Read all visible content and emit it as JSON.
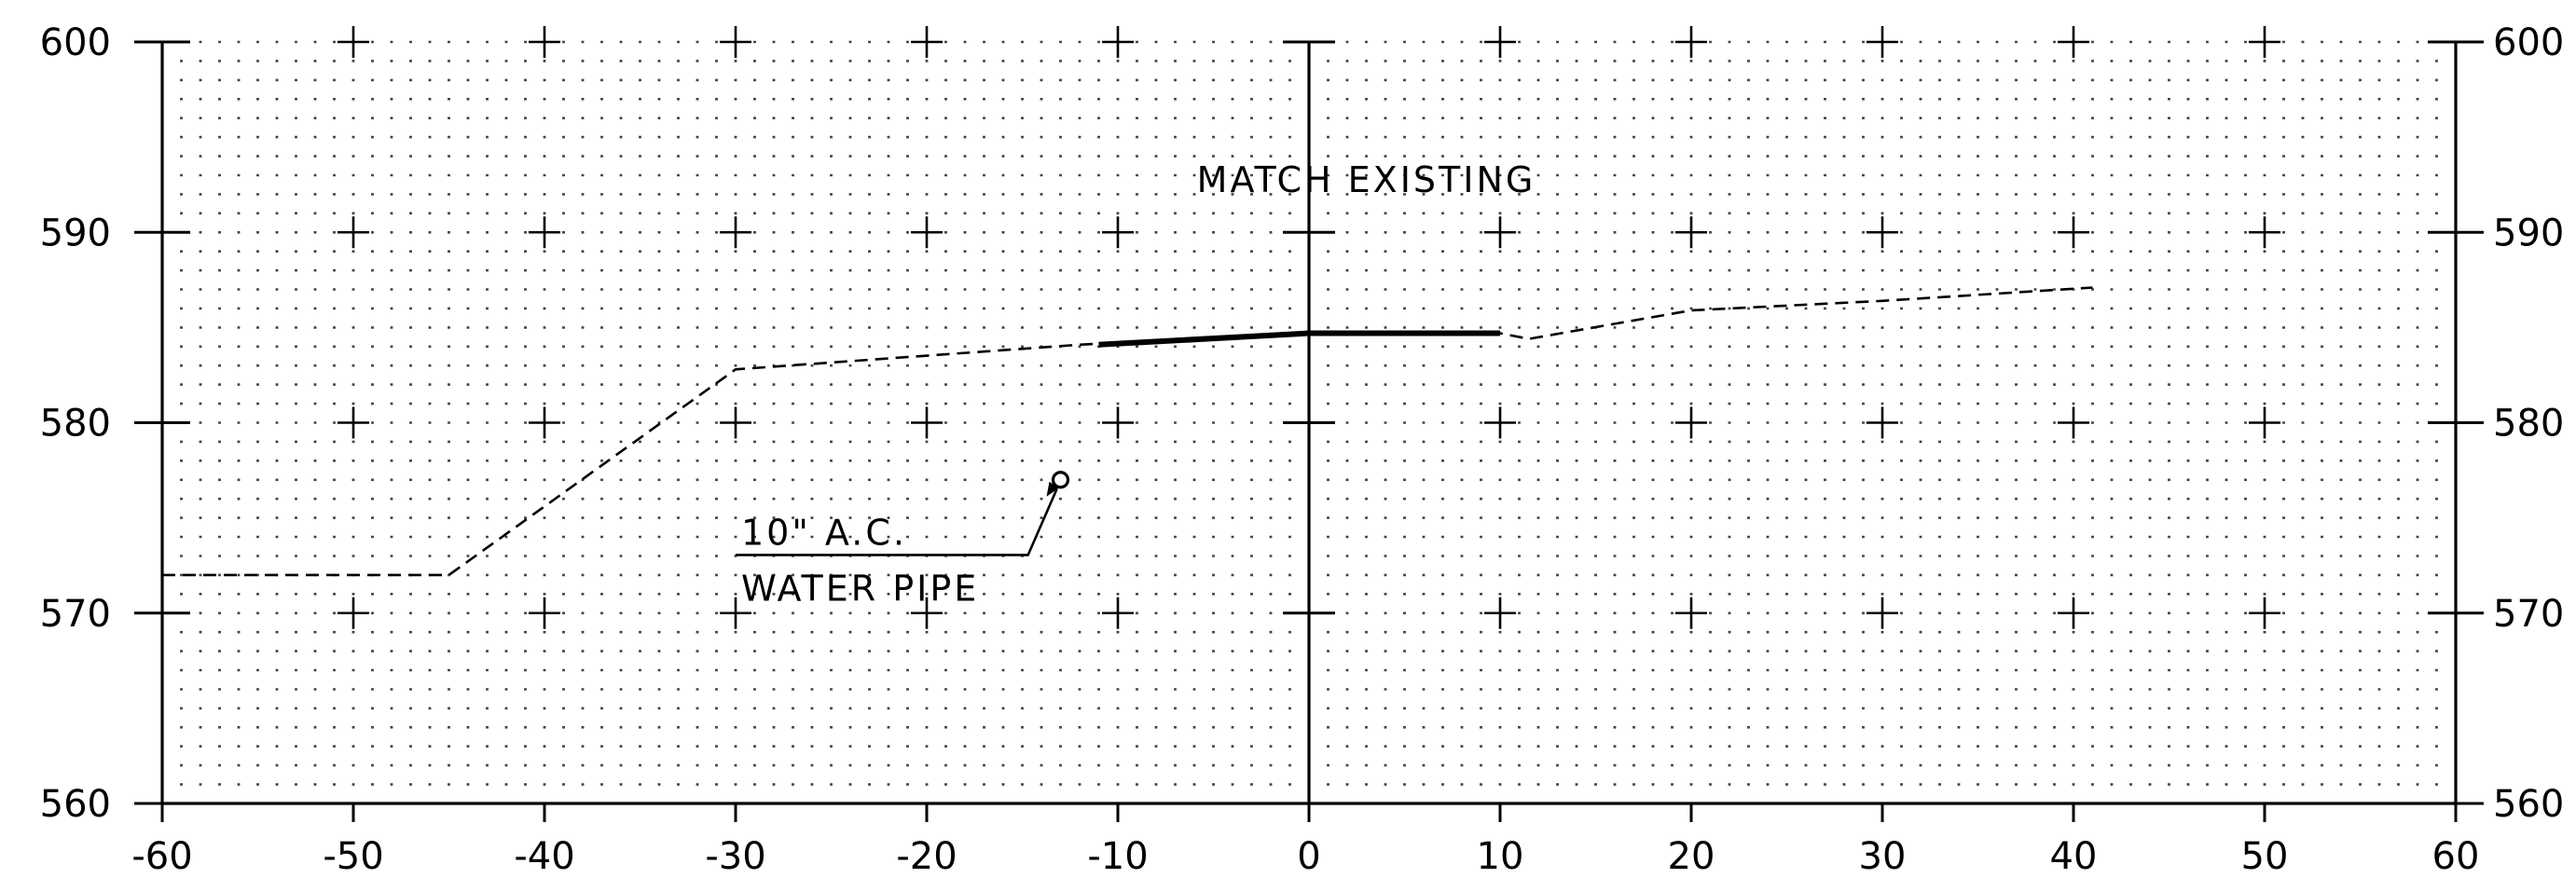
{
  "chart_data": {
    "type": "line",
    "title": "",
    "xlabel": "",
    "ylabel": "",
    "xlim": [
      -60,
      60
    ],
    "ylim": [
      560,
      600
    ],
    "x_ticks": [
      -60,
      -50,
      -40,
      -30,
      -20,
      -10,
      0,
      10,
      20,
      30,
      40,
      50,
      60
    ],
    "y_ticks": [
      560,
      570,
      580,
      590,
      600
    ],
    "x_tick_labels": [
      "-60",
      "-50",
      "-40",
      "-30",
      "-20",
      "-10",
      "0",
      "10",
      "20",
      "30",
      "40",
      "50",
      "60"
    ],
    "y_tick_labels": [
      "560",
      "570",
      "580",
      "590",
      "600"
    ],
    "grid": "dotted",
    "y_axis_both_sides": true,
    "series": [
      {
        "style": "dashed",
        "points": [
          [
            -60,
            572
          ],
          [
            -45,
            572
          ],
          [
            -30,
            582.8
          ],
          [
            -12,
            584.1
          ],
          [
            0,
            584.7
          ],
          [
            10,
            584.7
          ],
          [
            11.5,
            584.4
          ],
          [
            20,
            585.9
          ],
          [
            30,
            586.4
          ],
          [
            41,
            587.1
          ]
        ]
      },
      {
        "style": "solid-bold",
        "points": [
          [
            -11,
            584.1
          ],
          [
            0,
            584.7
          ],
          [
            10,
            584.7
          ]
        ]
      }
    ],
    "annotations": [
      {
        "text": "MATCH EXISTING",
        "x": 3,
        "y": 593
      },
      {
        "lines": [
          "10\" A.C.",
          "WATER PIPE"
        ],
        "x": -30,
        "y": 573,
        "point": [
          -13,
          577
        ]
      }
    ]
  }
}
